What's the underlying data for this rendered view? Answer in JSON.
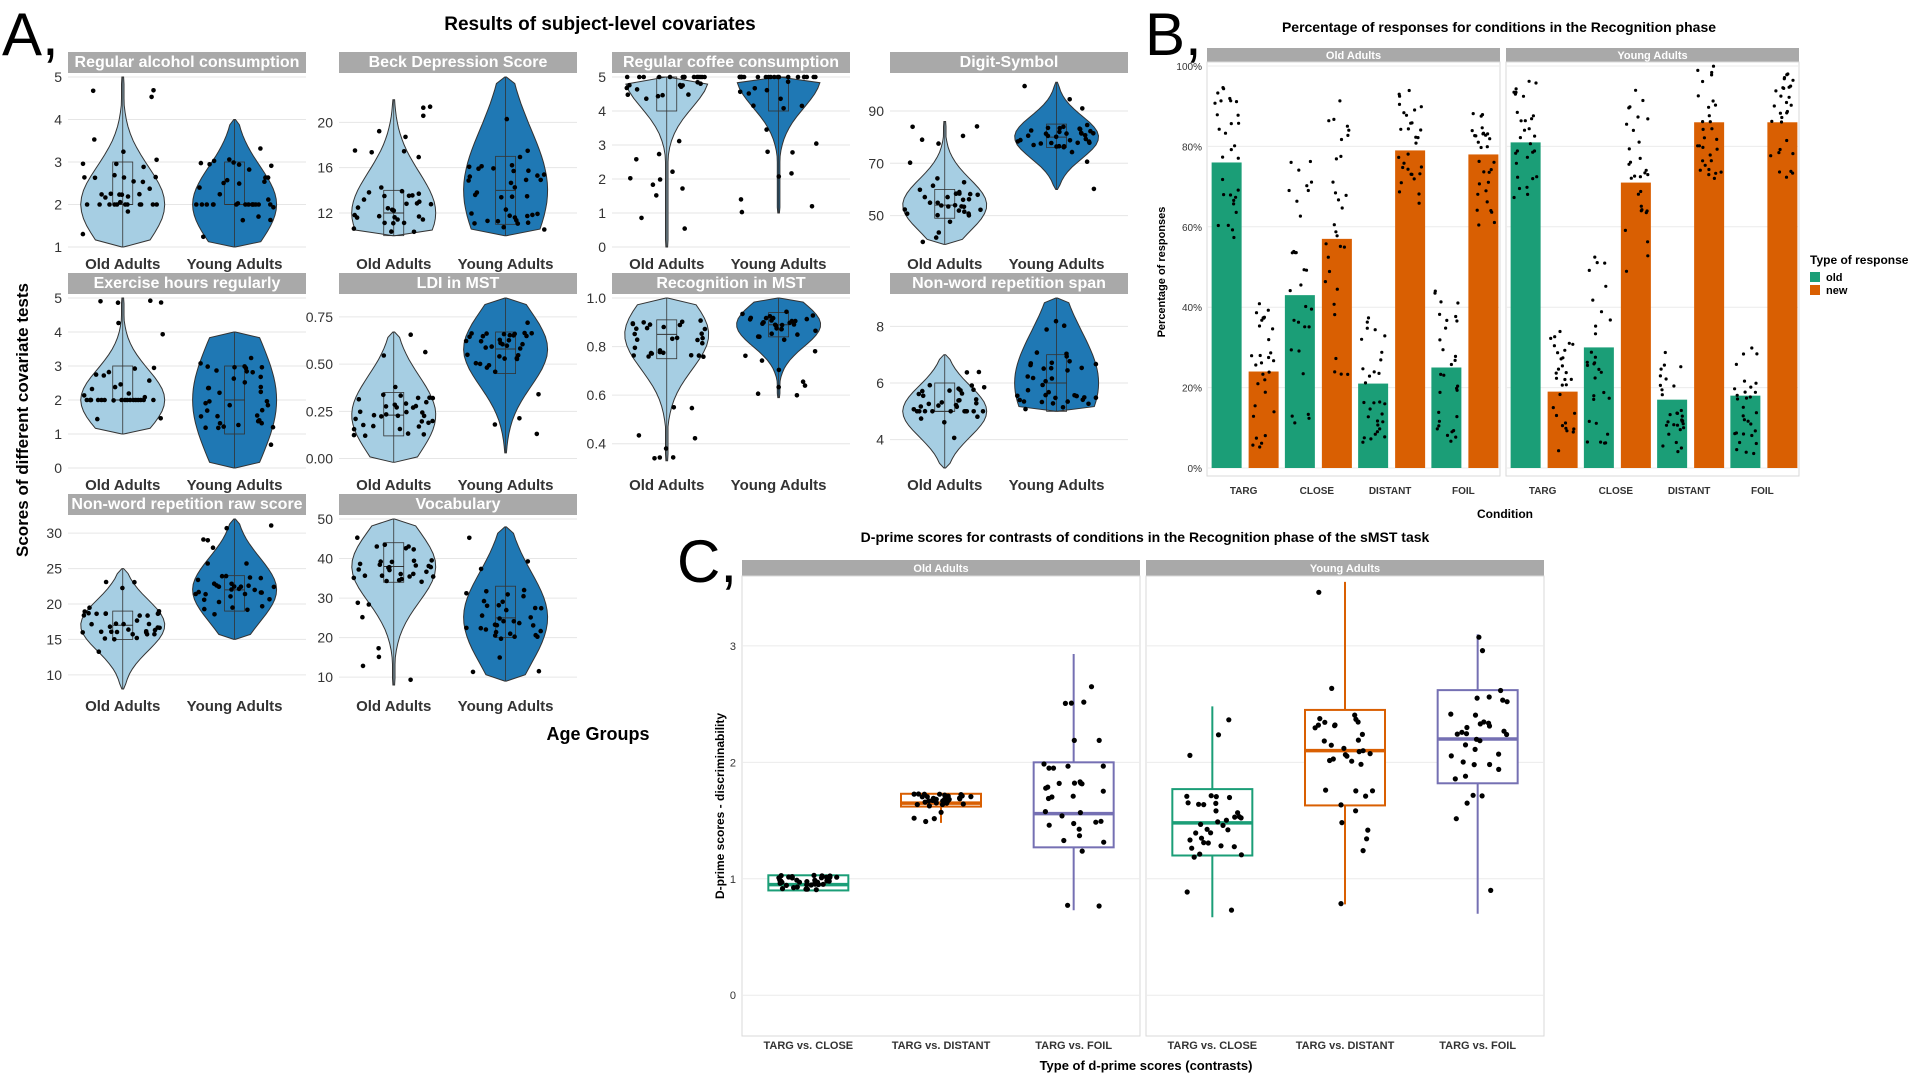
{
  "chart_data": [
    {
      "panel": "A,",
      "type": "violin",
      "title": "Results of subject-level covariates",
      "xlabel": "Age Groups",
      "ylabel": "Scores of different covariate tests",
      "groups": [
        "Old Adults",
        "Young Adults"
      ],
      "colors": {
        "Old Adults": "#a6cee3",
        "Young Adults": "#1f78b4"
      },
      "facets": [
        {
          "title": "Regular alcohol consumption",
          "ylim": [
            1,
            5
          ],
          "ticks": [
            1,
            2,
            3,
            4,
            5
          ],
          "tick_labels": [
            "1",
            "2",
            "3",
            "4",
            "5"
          ],
          "medians": [
            2,
            2
          ],
          "q1": [
            2,
            2
          ],
          "q3": [
            3,
            3
          ],
          "whisker": [
            [
              1,
              5
            ],
            [
              1,
              4
            ]
          ]
        },
        {
          "title": "Beck Depression Score",
          "ylim": [
            9,
            24
          ],
          "ticks": [
            12,
            16,
            20
          ],
          "tick_labels": [
            "12",
            "16",
            "20"
          ],
          "medians": [
            12,
            14
          ],
          "q1": [
            10,
            11
          ],
          "q3": [
            14,
            17
          ],
          "whisker": [
            [
              10,
              22
            ],
            [
              10,
              24
            ]
          ]
        },
        {
          "title": "Regular coffee consumption",
          "ylim": [
            0,
            5
          ],
          "ticks": [
            0,
            1,
            2,
            3,
            4,
            5
          ],
          "tick_labels": [
            "0",
            "1",
            "2",
            "3",
            "4",
            "5"
          ],
          "medians": [
            5,
            5
          ],
          "q1": [
            4,
            4
          ],
          "q3": [
            5,
            5
          ],
          "whisker": [
            [
              0,
              5
            ],
            [
              1,
              5
            ]
          ]
        },
        {
          "title": "Digit-Symbol",
          "ylim": [
            38,
            103
          ],
          "ticks": [
            50,
            70,
            90
          ],
          "tick_labels": [
            "50",
            "70",
            "90"
          ],
          "medians": [
            54,
            80
          ],
          "q1": [
            49,
            76
          ],
          "q3": [
            60,
            85
          ],
          "whisker": [
            [
              39,
              86
            ],
            [
              60,
              101
            ]
          ]
        },
        {
          "title": "Exercise hours regularly",
          "ylim": [
            0,
            5
          ],
          "ticks": [
            0,
            1,
            2,
            3,
            4,
            5
          ],
          "tick_labels": [
            "0",
            "1",
            "2",
            "3",
            "4",
            "5"
          ],
          "medians": [
            2,
            2
          ],
          "q1": [
            2,
            1
          ],
          "q3": [
            3,
            3
          ],
          "whisker": [
            [
              1,
              5
            ],
            [
              0,
              4
            ]
          ]
        },
        {
          "title": "LDI in MST",
          "ylim": [
            -0.05,
            0.85
          ],
          "ticks": [
            0,
            0.25,
            0.5,
            0.75
          ],
          "tick_labels": [
            "0.00",
            "0.25",
            "0.50",
            "0.75"
          ],
          "medians": [
            0.23,
            0.58
          ],
          "q1": [
            0.12,
            0.45
          ],
          "q3": [
            0.35,
            0.67
          ],
          "whisker": [
            [
              -0.02,
              0.67
            ],
            [
              0.03,
              0.85
            ]
          ]
        },
        {
          "title": "Recognition in MST",
          "ylim": [
            0.3,
            1.0
          ],
          "ticks": [
            0.4,
            0.6,
            0.8,
            1.0
          ],
          "tick_labels": [
            "0.4",
            "0.6",
            "0.8",
            "1.0"
          ],
          "medians": [
            0.85,
            0.89
          ],
          "q1": [
            0.75,
            0.84
          ],
          "q3": [
            0.91,
            0.94
          ],
          "whisker": [
            [
              0.33,
              1.0
            ],
            [
              0.59,
              1.0
            ]
          ]
        },
        {
          "title": "Non-word repetition span",
          "ylim": [
            3,
            9
          ],
          "ticks": [
            4,
            6,
            8
          ],
          "tick_labels": [
            "4",
            "6",
            "8"
          ],
          "medians": [
            5,
            6
          ],
          "q1": [
            5,
            5
          ],
          "q3": [
            6,
            7
          ],
          "whisker": [
            [
              3,
              7
            ],
            [
              5,
              9
            ]
          ]
        },
        {
          "title": "Non-word repetition raw score",
          "ylim": [
            8,
            32
          ],
          "ticks": [
            10,
            15,
            20,
            25,
            30
          ],
          "tick_labels": [
            "10",
            "15",
            "20",
            "25",
            "30"
          ],
          "medians": [
            17,
            22
          ],
          "q1": [
            15,
            19
          ],
          "q3": [
            19,
            24
          ],
          "whisker": [
            [
              8,
              25
            ],
            [
              15,
              32
            ]
          ]
        },
        {
          "title": "Vocabulary",
          "ylim": [
            7,
            50
          ],
          "ticks": [
            10,
            20,
            30,
            40,
            50
          ],
          "tick_labels": [
            "10",
            "20",
            "30",
            "40",
            "50"
          ],
          "medians": [
            38,
            25
          ],
          "q1": [
            34,
            20
          ],
          "q3": [
            44,
            33
          ],
          "whisker": [
            [
              8,
              50
            ],
            [
              9,
              48
            ]
          ]
        }
      ]
    },
    {
      "panel": "B,",
      "type": "bar",
      "title": "Percentage of responses for conditions in the Recognition phase",
      "xlabel": "Condition",
      "ylabel": "Percentage of responses",
      "categories": [
        "TARG",
        "CLOSE",
        "DISTANT",
        "FOIL"
      ],
      "facets": [
        "Old Adults",
        "Young Adults"
      ],
      "ylim": [
        0,
        100
      ],
      "yticks": [
        "0%",
        "20%",
        "40%",
        "60%",
        "80%",
        "100%"
      ],
      "legend_title": "Type of response",
      "legend_position": "right",
      "series": [
        {
          "name": "old",
          "color": "#1b9e77",
          "values": {
            "Old Adults": [
              76,
              43,
              21,
              25
            ],
            "Young Adults": [
              81,
              30,
              17,
              18
            ]
          }
        },
        {
          "name": "new",
          "color": "#d95f02",
          "values": {
            "Old Adults": [
              24,
              57,
              79,
              78
            ],
            "Young Adults": [
              19,
              71,
              86,
              86
            ]
          }
        }
      ]
    },
    {
      "panel": "C,",
      "type": "box",
      "title": "D-prime scores for contrasts of conditions in the Recognition phase of the sMST task",
      "xlabel": "Type of d-prime scores (contrasts)",
      "ylabel": "D-prime scores - discriminability",
      "categories": [
        "TARG vs. CLOSE",
        "TARG vs. DISTANT",
        "TARG vs. FOIL"
      ],
      "facets": [
        "Old Adults",
        "Young Adults"
      ],
      "ylim": [
        -0.35,
        3.6
      ],
      "yticks": [
        0,
        1,
        2,
        3
      ],
      "colors": [
        "#1b9e77",
        "#d95f02",
        "#7570b3"
      ],
      "boxes": {
        "Old Adults": [
          {
            "q1": 0.9,
            "median": 0.95,
            "q3": 1.03,
            "lo": 0.9,
            "hi": 1.03
          },
          {
            "q1": 1.62,
            "median": 1.65,
            "q3": 1.73,
            "lo": 1.48,
            "hi": 1.73
          },
          {
            "q1": 1.27,
            "median": 1.56,
            "q3": 2.0,
            "lo": 0.73,
            "hi": 2.93
          }
        ],
        "Young Adults": [
          {
            "q1": 1.2,
            "median": 1.48,
            "q3": 1.77,
            "lo": 0.67,
            "hi": 2.48
          },
          {
            "q1": 1.63,
            "median": 2.1,
            "q3": 2.45,
            "lo": 0.78,
            "hi": 3.55
          },
          {
            "q1": 1.82,
            "median": 2.2,
            "q3": 2.62,
            "lo": 0.7,
            "hi": 3.1
          }
        ]
      }
    }
  ]
}
